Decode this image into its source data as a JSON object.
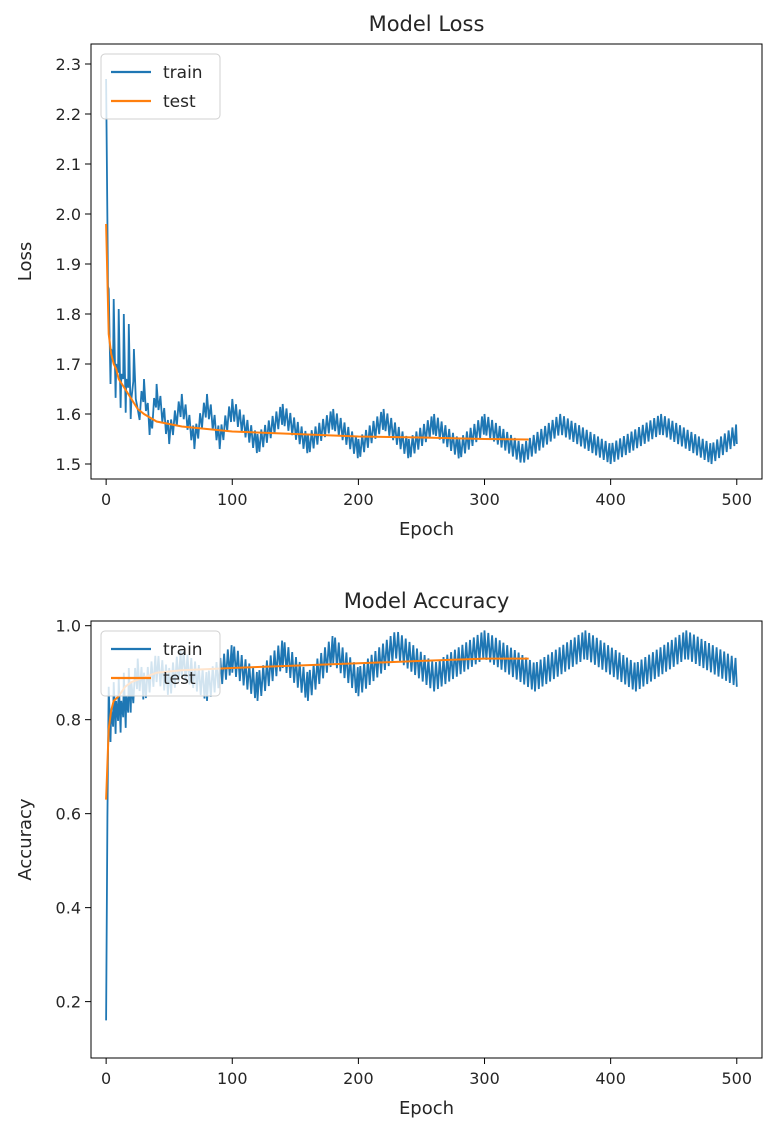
{
  "chart_data": [
    {
      "type": "line",
      "title": "Model Loss",
      "xlabel": "Epoch",
      "ylabel": "Loss",
      "xlim": [
        -12,
        520
      ],
      "ylim": [
        1.47,
        2.34
      ],
      "xticks": [
        0,
        100,
        200,
        300,
        400,
        500
      ],
      "yticks": [
        1.5,
        1.6,
        1.7,
        1.8,
        1.9,
        2.0,
        2.1,
        2.2,
        2.3
      ],
      "xtick_labels": [
        "0",
        "100",
        "200",
        "300",
        "400",
        "500"
      ],
      "ytick_labels": [
        "1.5",
        "1.6",
        "1.7",
        "1.8",
        "1.9",
        "2.0",
        "2.1",
        "2.2",
        "2.3"
      ],
      "grid": false,
      "legend": "upper-left",
      "series": [
        {
          "name": "train",
          "color": "#1f77b4",
          "x": [
            0,
            2,
            4,
            6,
            8,
            10,
            12,
            14,
            16,
            18,
            20,
            22,
            25,
            30,
            35,
            40,
            50,
            60,
            70,
            80,
            90,
            100,
            120,
            140,
            160,
            180,
            200,
            220,
            240,
            260,
            280,
            300,
            330,
            360,
            400,
            440,
            480,
            500
          ],
          "values": [
            2.22,
            1.8,
            1.68,
            1.78,
            1.65,
            1.76,
            1.63,
            1.75,
            1.62,
            1.73,
            1.61,
            1.71,
            1.59,
            1.65,
            1.57,
            1.64,
            1.56,
            1.62,
            1.55,
            1.62,
            1.55,
            1.61,
            1.54,
            1.6,
            1.54,
            1.59,
            1.53,
            1.59,
            1.53,
            1.58,
            1.53,
            1.58,
            1.52,
            1.58,
            1.52,
            1.58,
            1.52,
            1.56
          ]
        },
        {
          "name": "test",
          "color": "#ff7f0e",
          "x": [
            0,
            2,
            4,
            6,
            8,
            10,
            15,
            20,
            25,
            30,
            40,
            50,
            60,
            80,
            100,
            150,
            200,
            250,
            300,
            335
          ],
          "values": [
            1.98,
            1.76,
            1.72,
            1.7,
            1.69,
            1.67,
            1.65,
            1.63,
            1.61,
            1.6,
            1.585,
            1.58,
            1.575,
            1.57,
            1.565,
            1.56,
            1.555,
            1.553,
            1.55,
            1.549
          ]
        }
      ]
    },
    {
      "type": "line",
      "title": "Model Accuracy",
      "xlabel": "Epoch",
      "ylabel": "Accuracy",
      "xlim": [
        -12,
        520
      ],
      "ylim": [
        0.08,
        1.01
      ],
      "xticks": [
        0,
        100,
        200,
        300,
        400,
        500
      ],
      "yticks": [
        0.2,
        0.4,
        0.6,
        0.8,
        1.0
      ],
      "xtick_labels": [
        "0",
        "100",
        "200",
        "300",
        "400",
        "500"
      ],
      "ytick_labels": [
        "0.2",
        "0.4",
        "0.6",
        "0.8",
        "1.0"
      ],
      "grid": false,
      "legend": "upper-left",
      "series": [
        {
          "name": "train",
          "color": "#1f77b4",
          "x": [
            0,
            1,
            2,
            4,
            6,
            8,
            10,
            12,
            14,
            16,
            18,
            20,
            25,
            30,
            40,
            50,
            60,
            80,
            100,
            120,
            140,
            160,
            180,
            200,
            230,
            260,
            300,
            340,
            380,
            420,
            460,
            500
          ],
          "values": [
            0.12,
            0.63,
            0.83,
            0.78,
            0.84,
            0.8,
            0.85,
            0.8,
            0.86,
            0.81,
            0.87,
            0.85,
            0.9,
            0.87,
            0.91,
            0.88,
            0.92,
            0.87,
            0.93,
            0.87,
            0.94,
            0.87,
            0.95,
            0.88,
            0.96,
            0.89,
            0.96,
            0.89,
            0.96,
            0.89,
            0.96,
            0.9
          ]
        },
        {
          "name": "test",
          "color": "#ff7f0e",
          "x": [
            0,
            2,
            4,
            6,
            10,
            15,
            20,
            30,
            40,
            60,
            100,
            150,
            200,
            250,
            300,
            335
          ],
          "values": [
            0.63,
            0.78,
            0.82,
            0.84,
            0.85,
            0.87,
            0.88,
            0.89,
            0.9,
            0.905,
            0.91,
            0.915,
            0.92,
            0.925,
            0.93,
            0.93
          ]
        }
      ]
    }
  ]
}
